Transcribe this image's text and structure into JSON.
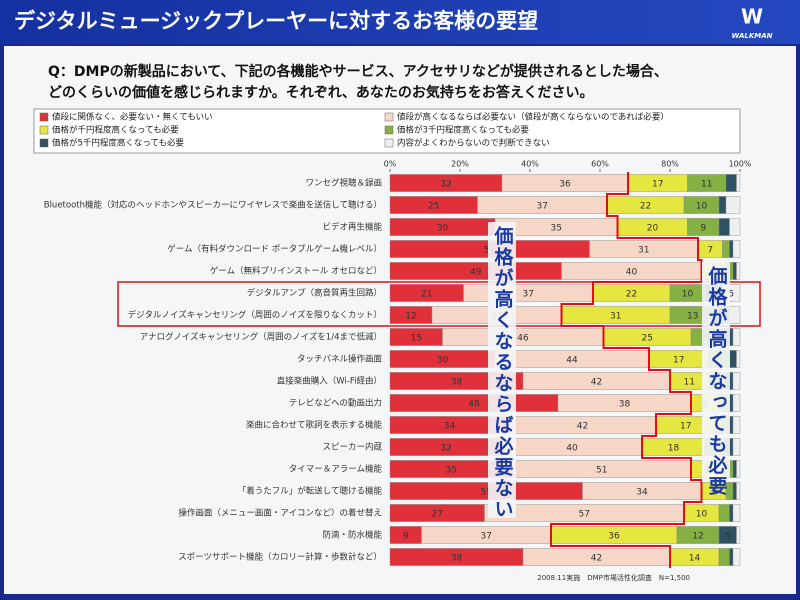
{
  "chart_data": {
    "type": "stacked-barh",
    "title": "デジタルミュージックプレーヤーに対するお客様の要望",
    "logo": "WALKMAN",
    "question": [
      "Q：DMPの新製品において、下記の各機能やサービス、アクセサリなどが提供されるとした場合、",
      "どのくらいの価値を感じられますか。それぞれ、あなたのお気持ちをお答えください。"
    ],
    "annotations": [
      "価格が高くなるならば必要ない",
      "価格が高くなっても必要"
    ],
    "footnote": "2008.11実施　DMP市場活性化調査　N=1,500",
    "xlim": [
      0,
      100
    ],
    "xticks": [
      {
        "value": 0,
        "label": "0%"
      },
      {
        "value": 20,
        "label": "20%"
      },
      {
        "value": 40,
        "label": "40%"
      },
      {
        "value": 60,
        "label": "60%"
      },
      {
        "value": 80,
        "label": "80%"
      },
      {
        "value": 100,
        "label": "100%"
      }
    ],
    "categories": [
      "ワンセグ視聴＆録画",
      "Bluetooth機能（対応のヘッドホンやスピーカーにワイヤレスで楽曲を送信して聴ける）",
      "ビデオ再生機能",
      "ゲーム（有料ダウンロード ポータブルゲーム機レベル）",
      "ゲーム（無料プリインストール オセロなど）",
      "デジタルアンプ（高音質再生回路）",
      "デジタルノイズキャンセリング（周囲のノイズを限りなくカット）",
      "アナログノイズキャンセリング（周囲のノイズを1/4まで低減）",
      "タッチパネル操作画面",
      "直接楽曲購入（Wi-Fi経由）",
      "テレビなどへの動画出力",
      "楽曲に合わせて歌詞を表示する機能",
      "スピーカー内蔵",
      "タイマー＆アラーム機能",
      "「着うたフル」が転送して聴ける機能",
      "操作画面（メニュー画面・アイコンなど）の着せ替え",
      "防滴・防水機能",
      "スポーツサポート機能（カロリー計算・歩数計など）"
    ],
    "series": [
      {
        "name": "値段に関係なく、必要ない・無くてもいい",
        "color": "#e0303a",
        "values": [
          32,
          25,
          30,
          57,
          49,
          21,
          12,
          15,
          30,
          38,
          48,
          34,
          32,
          35,
          55,
          27,
          9,
          38
        ]
      },
      {
        "name": "値段が高くなるならば必要ない（値段が高くならないのであれば必要）",
        "color": "#f6d6c6",
        "values": [
          36,
          37,
          35,
          31,
          40,
          37,
          37,
          46,
          44,
          42,
          38,
          42,
          40,
          51,
          34,
          57,
          37,
          42
        ]
      },
      {
        "name": "価格が千円程度高くなっても必要",
        "color": "#e6e640",
        "values": [
          17,
          22,
          20,
          7,
          7,
          22,
          31,
          25,
          17,
          11,
          8,
          17,
          18,
          9,
          7,
          10,
          36,
          14
        ]
      },
      {
        "name": "価格が3千円程度高くなっても必要",
        "color": "#84b044",
        "values": [
          11,
          10,
          9,
          2,
          2,
          10,
          13,
          9,
          6,
          5,
          3,
          4,
          6,
          3,
          2,
          3,
          12,
          3
        ]
      },
      {
        "name": "価格が5千円程度高くなっても必要",
        "color": "#2e5262",
        "values": [
          3,
          2,
          3,
          1,
          1,
          5,
          4,
          3,
          2,
          2,
          1,
          1,
          2,
          1,
          1,
          1,
          5,
          1
        ]
      },
      {
        "name": "内容がよくわからないので判断できない",
        "color": "#eef0f0",
        "values": [
          1,
          4,
          3,
          2,
          1,
          5,
          3,
          2,
          1,
          2,
          2,
          2,
          2,
          1,
          1,
          2,
          1,
          2
        ]
      }
    ]
  }
}
